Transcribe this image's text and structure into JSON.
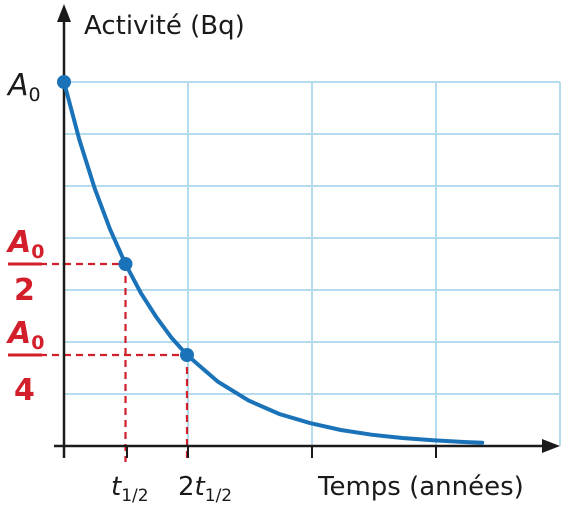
{
  "chart_data": {
    "type": "line",
    "title": "",
    "ylabel": "Activité (Bq)",
    "xlabel": "Temps (années)",
    "units": {
      "x": "t_half",
      "y": "A0"
    },
    "xlim": [
      0,
      8
    ],
    "ylim": [
      0,
      1.0
    ],
    "grid": true,
    "colors": {
      "curve": "#1a73b8",
      "guides": "#d21f2b",
      "grid": "#b5dcee",
      "axes": "#1a1a1a"
    },
    "series": [
      {
        "x": [
          0,
          0.25,
          0.5,
          0.75,
          1,
          1.25,
          1.5,
          1.75,
          2,
          2.5,
          3,
          3.5,
          4,
          4.5,
          5,
          5.5,
          6,
          6.5,
          6.8
        ],
        "y": [
          1,
          0.841,
          0.707,
          0.595,
          0.5,
          0.42,
          0.354,
          0.297,
          0.25,
          0.177,
          0.125,
          0.088,
          0.063,
          0.044,
          0.031,
          0.022,
          0.016,
          0.011,
          0.009
        ]
      }
    ],
    "points": [
      {
        "x": 0,
        "y": 1
      },
      {
        "x": 1,
        "y": 0.5
      },
      {
        "x": 2,
        "y": 0.25
      }
    ],
    "y_ticks": [
      {
        "value": 1,
        "base": "A",
        "sub": "0"
      },
      {
        "value": 0.5,
        "base": "A",
        "sub": "0",
        "den": "2"
      },
      {
        "value": 0.25,
        "base": "A",
        "sub": "0",
        "den": "4"
      }
    ],
    "x_ticks": [
      {
        "value": 1,
        "coef": "",
        "base": "t",
        "sub": "1/2"
      },
      {
        "value": 2,
        "coef": "2",
        "base": "t",
        "sub": "1/2"
      }
    ]
  }
}
